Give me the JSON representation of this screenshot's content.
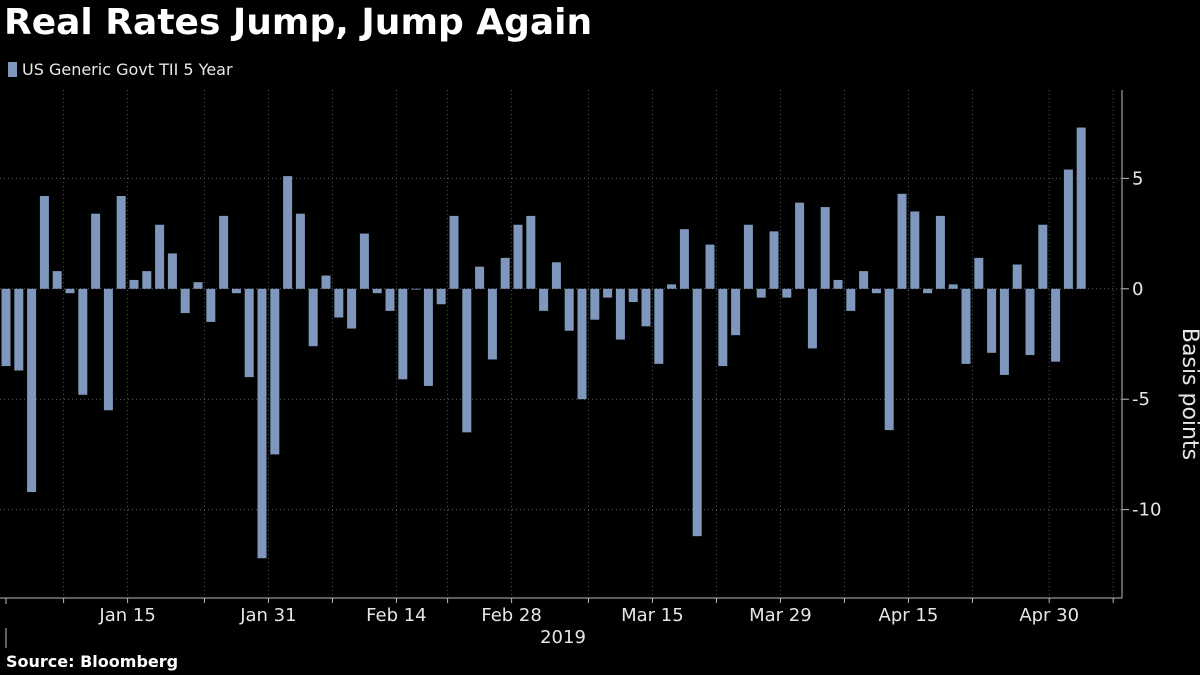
{
  "title": "Real Rates Jump, Jump Again",
  "source": "Source: Bloomberg",
  "colors": {
    "background": "#000000",
    "bar": "#7f97bd",
    "grid": "#5a5a5a",
    "text": "#e6e6e6"
  },
  "chart_data": {
    "type": "bar",
    "title": "Real Rates Jump, Jump Again",
    "legend": {
      "position": "top-left",
      "entries": [
        "US Generic Govt TII 5 Year"
      ]
    },
    "series": [
      {
        "name": "US Generic Govt TII 5 Year",
        "values": [
          -3.5,
          -3.7,
          -9.2,
          4.2,
          0.8,
          -0.2,
          -4.8,
          3.4,
          -5.5,
          4.2,
          0.4,
          0.8,
          2.9,
          1.6,
          -1.1,
          0.3,
          -1.5,
          3.3,
          -0.2,
          -4.0,
          -12.2,
          -7.5,
          5.1,
          3.4,
          -2.6,
          0.6,
          -1.3,
          -1.8,
          2.5,
          -0.2,
          -1.0,
          -4.1,
          0.0,
          -4.4,
          -0.7,
          3.3,
          -6.5,
          1.0,
          -3.2,
          1.4,
          2.9,
          3.3,
          -1.0,
          1.2,
          -1.9,
          -5.0,
          -1.4,
          -0.4,
          -2.3,
          -0.6,
          -1.7,
          -3.4,
          0.2,
          2.7,
          -11.2,
          2.0,
          -3.5,
          -2.1,
          2.9,
          -0.4,
          2.6,
          -0.4,
          3.9,
          -2.7,
          3.7,
          0.4,
          -1.0,
          0.8,
          -0.2,
          -6.4,
          4.3,
          3.5,
          -0.2,
          3.3,
          0.2,
          -3.4,
          1.4,
          -2.9,
          -3.9,
          1.1,
          -3.0,
          2.9,
          -3.3,
          5.4,
          7.3
        ]
      }
    ],
    "x_axis": {
      "year_label": "2019",
      "tick_labels": [
        "Jan 15",
        "Jan 31",
        "Feb 14",
        "Feb 28",
        "Mar 15",
        "Mar 29",
        "Apr 15",
        "Apr 30"
      ],
      "label_bar_index": [
        10,
        21,
        31,
        40,
        51,
        61,
        71,
        82
      ],
      "gridline_bar_index": [
        5,
        10,
        16,
        21,
        26,
        31,
        35,
        40,
        46,
        51,
        56,
        61,
        66,
        71,
        76,
        82,
        87
      ],
      "start_bar_index": 0
    },
    "y_axis": {
      "title": "Basis points",
      "position": "right",
      "ticks": [
        5,
        0,
        -5,
        -10
      ],
      "tick_labels": [
        "5",
        "0",
        "-5",
        "-10"
      ],
      "ylim": [
        -14,
        9
      ]
    },
    "grid": true
  }
}
